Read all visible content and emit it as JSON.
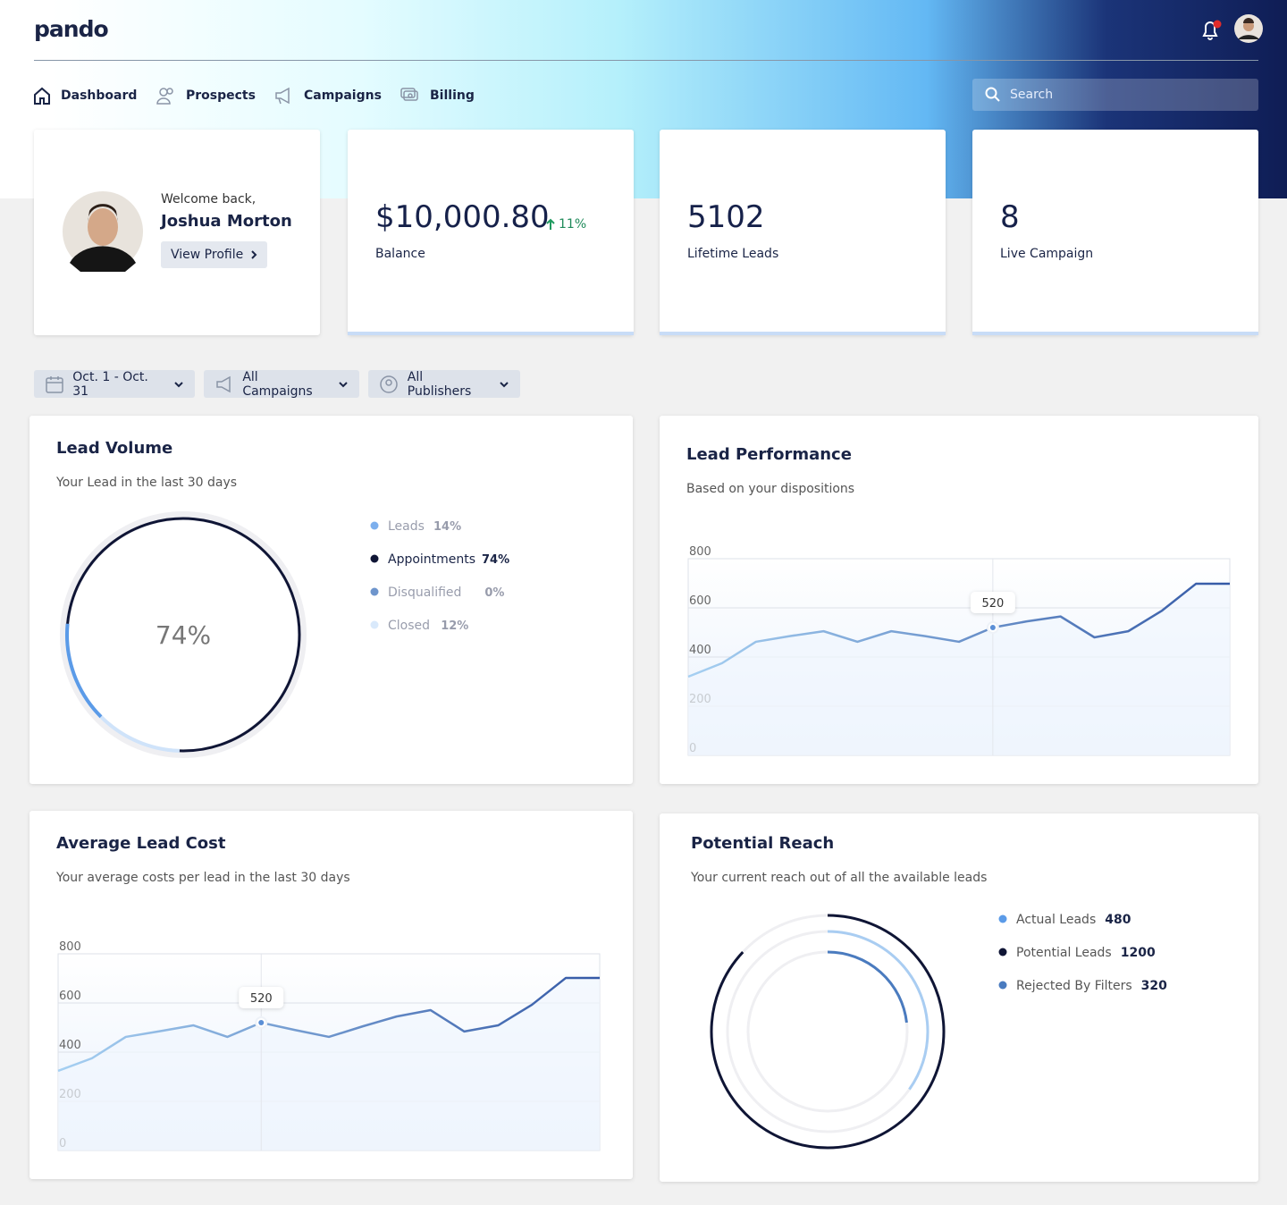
{
  "header": {
    "logo": "pando",
    "nav": [
      "Dashboard",
      "Prospects",
      "Campaigns",
      "Billing"
    ],
    "search_placeholder": "Search"
  },
  "profile": {
    "greeting": "Welcome back,",
    "name": "Joshua Morton",
    "button": "View Profile"
  },
  "stats": [
    {
      "value": "$10,000.80",
      "change": "11%",
      "label": "Balance"
    },
    {
      "value": "5102",
      "label": "Lifetime Leads"
    },
    {
      "value": "8",
      "label": "Live Campaign"
    }
  ],
  "filters": [
    "Oct. 1 - Oct. 31",
    "All Campaigns",
    "All Publishers"
  ],
  "lead_volume": {
    "title": "Lead Volume",
    "subtitle": "Your Lead in the last 30 days",
    "chart_data": {
      "type": "donut",
      "categories": [
        "Leads",
        "Appointments",
        "Disqualified",
        "Closed"
      ],
      "values": [
        14,
        74,
        0,
        12
      ],
      "value_labels": [
        "14%",
        "74%",
        "0%",
        "12%"
      ],
      "colors": [
        "#5b9be8",
        "#0f1535",
        "#4a7bbf",
        "#cfe3fa"
      ]
    }
  },
  "lead_performance": {
    "title": "Lead Performance",
    "subtitle": "Based on your dispositions",
    "chart_data": {
      "type": "line",
      "values": [
        320,
        375,
        462,
        485,
        505,
        462,
        505,
        485,
        462,
        520,
        545,
        565,
        480,
        505,
        589,
        698,
        698
      ],
      "ylim": [
        0,
        800
      ],
      "yticks": [
        0,
        200,
        400,
        600,
        800
      ],
      "annotation": 520,
      "grid": true,
      "colors": [
        "#a6d0f2",
        "#3459a6"
      ]
    }
  },
  "average_lead_cost": {
    "title": "Average Lead Cost",
    "subtitle": "Your average costs per lead in the last 30 days",
    "chart_data": {
      "type": "line",
      "values": [
        324,
        375,
        462,
        485,
        509,
        462,
        520,
        490,
        462,
        505,
        545,
        571,
        484,
        509,
        593,
        702,
        702
      ],
      "ylim": [
        0,
        800
      ],
      "yticks": [
        0,
        200,
        400,
        600,
        800
      ],
      "annotation": 520,
      "grid": true,
      "colors": [
        "#a6d0f2",
        "#3459a6"
      ]
    }
  },
  "potential_reach": {
    "title": "Potential Reach",
    "subtitle": "Your current reach out of all the available leads",
    "chart_data": {
      "type": "rings",
      "categories": [
        "Actual Leads",
        "Potential Leads",
        "Rejected By Filters"
      ],
      "values": [
        480,
        1200,
        320
      ],
      "colors": [
        "#a9cdf2",
        "#0f1535",
        "#4a7bbf"
      ]
    }
  }
}
